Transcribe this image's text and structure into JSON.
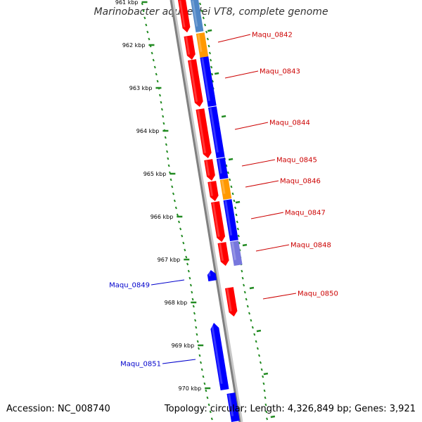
{
  "header": {
    "title": "Marinobacter aquaeolei VT8, complete genome"
  },
  "footer": {
    "accession": "Accession: NC_008740",
    "summary": "Topology: circular; Length: 4,326,849 bp; Genes: 3,921"
  },
  "colors": {
    "forward_cds": "#ff0000",
    "reverse_cds": "#0000ff",
    "orange_feature": "#ff9900",
    "steelblue_feature": "#4f86c6",
    "lavender_feature": "#7777dd",
    "backbone": "#808080",
    "gc_ticks": "#228b22",
    "label_red": "#cc0000",
    "label_blue": "#0000cc"
  },
  "ruler": {
    "ticks": [
      "961 kbp",
      "962 kbp",
      "963 kbp",
      "964 kbp",
      "965 kbp",
      "966 kbp",
      "967 kbp",
      "968 kbp",
      "969 kbp",
      "970 kbp"
    ]
  },
  "genes": {
    "right_labels": [
      "Maqu_0842",
      "Maqu_0843",
      "Maqu_0844",
      "Maqu_0845",
      "Maqu_0846",
      "Maqu_0847",
      "Maqu_0848",
      "Maqu_0850"
    ],
    "left_labels": [
      "Maqu_0849",
      "Maqu_0851"
    ]
  }
}
